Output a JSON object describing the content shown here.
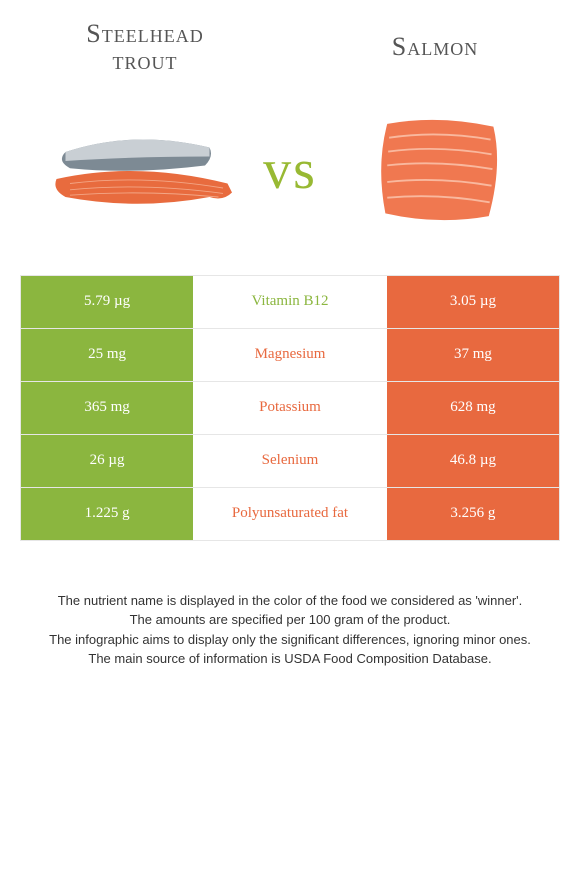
{
  "colors": {
    "left": "#8bb63f",
    "right": "#e8693f",
    "vs": "#98b933",
    "title": "#555555",
    "border": "#e6e6e6",
    "bg": "#ffffff",
    "footnote": "#333333",
    "trout_body": "#e86b3e",
    "trout_back": "#7d8a94",
    "trout_stripe": "#c9cfd4",
    "salmon_fill": "#f07850",
    "salmon_line": "#f9b89e"
  },
  "left_food": {
    "name_line1": "Steelhead",
    "name_line2": "trout"
  },
  "right_food": {
    "name": "Salmon"
  },
  "vs_label": "vs",
  "title_fontsize": 26,
  "vs_fontsize": 56,
  "nutrients": [
    {
      "name": "Vitamin B12",
      "left": "5.79 µg",
      "right": "3.05 µg",
      "winner": "left"
    },
    {
      "name": "Magnesium",
      "left": "25 mg",
      "right": "37 mg",
      "winner": "right"
    },
    {
      "name": "Potassium",
      "left": "365 mg",
      "right": "628 mg",
      "winner": "right"
    },
    {
      "name": "Selenium",
      "left": "26 µg",
      "right": "46.8 µg",
      "winner": "right"
    },
    {
      "name": "Polyunsaturated fat",
      "left": "1.225 g",
      "right": "3.256 g",
      "winner": "right"
    }
  ],
  "footnotes": [
    "The nutrient name is displayed in the color of the food we considered as 'winner'.",
    "The amounts are specified per 100 gram of the product.",
    "The infographic aims to display only the significant differences, ignoring minor ones.",
    "The main source of information is USDA Food Composition Database."
  ]
}
